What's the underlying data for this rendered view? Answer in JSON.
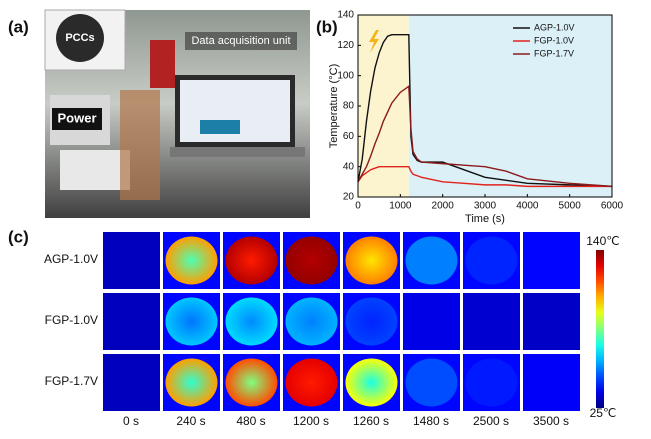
{
  "panel_labels": [
    "(a)",
    "(b)",
    "(c)"
  ],
  "panel_a": {
    "labels": [
      "PCCs",
      "Data acquisition unit",
      "Power"
    ]
  },
  "chart_data": {
    "type": "line",
    "x": [
      0,
      100,
      200,
      300,
      400,
      500,
      600,
      700,
      800,
      1000,
      1200,
      1250,
      1300,
      1400,
      1500,
      2000,
      2500,
      3000,
      3500,
      4000,
      5000,
      6000
    ],
    "series": [
      {
        "name": "AGP-1.0V",
        "color": "#111111",
        "values": [
          30,
          45,
          70,
          90,
          105,
          115,
          122,
          126,
          127,
          127,
          127,
          60,
          48,
          44,
          43,
          43,
          38,
          33,
          31,
          29,
          28,
          27
        ]
      },
      {
        "name": "FGP-1.0V",
        "color": "#e0231c",
        "values": [
          30,
          34,
          36,
          38,
          39,
          40,
          40,
          40,
          40,
          40,
          40,
          37,
          35,
          34,
          33,
          30,
          29,
          28,
          28,
          27,
          27,
          27
        ]
      },
      {
        "name": "FGP-1.7V",
        "color": "#8b1a1a",
        "values": [
          30,
          35,
          40,
          47,
          55,
          62,
          70,
          76,
          82,
          89,
          93,
          65,
          50,
          45,
          43,
          42,
          41,
          40,
          37,
          32,
          29,
          27
        ]
      }
    ],
    "shaded": [
      {
        "xlim": [
          0,
          1200
        ],
        "color": "#fbf4cf"
      },
      {
        "xlim": [
          1200,
          6000
        ],
        "color": "#dcf0f8"
      }
    ],
    "xlabel": "Time (s)",
    "ylabel": "Temperature (°C)",
    "xlim": [
      0,
      6000
    ],
    "xticks": [
      0,
      1000,
      2000,
      3000,
      4000,
      5000,
      6000
    ],
    "ylim": [
      20,
      140
    ],
    "yticks": [
      20,
      40,
      60,
      80,
      100,
      120,
      140
    ],
    "legend": "upper right"
  },
  "panel_c": {
    "rows": [
      "AGP-1.0V",
      "FGP-1.0V",
      "FGP-1.7V"
    ],
    "columns": [
      "0 s",
      "240 s",
      "480 s",
      "1200 s",
      "1260 s",
      "1480 s",
      "2500 s",
      "3500 s"
    ],
    "colorbar": {
      "max": "140℃",
      "min": "25℃"
    }
  }
}
